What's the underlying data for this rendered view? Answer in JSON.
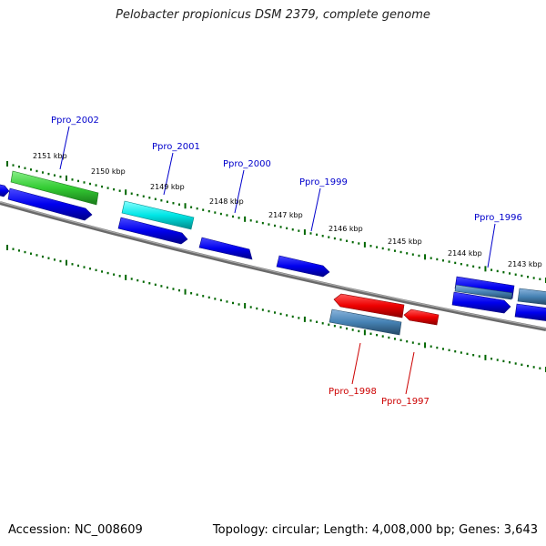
{
  "title": "Pelobacter propionicus DSM 2379, complete genome",
  "footer": {
    "accession": "Accession: NC_008609",
    "topology": "Topology: circular; Length: 4,008,000 bp; Genes: 3,643"
  },
  "scale_labels": [
    "2151 kbp",
    "2150 kbp",
    "2149 kbp",
    "2148 kbp",
    "2147 kbp",
    "2146 kbp",
    "2145 kbp",
    "2144 kbp",
    "2143 kbp"
  ],
  "gene_labels": [
    {
      "text": "Ppro_2002",
      "color": "#0000cc"
    },
    {
      "text": "Ppro_2001",
      "color": "#0000cc"
    },
    {
      "text": "Ppro_2000",
      "color": "#0000cc"
    },
    {
      "text": "Ppro_1999",
      "color": "#0000cc"
    },
    {
      "text": "Ppro_1996",
      "color": "#0000cc"
    },
    {
      "text": "Ppro_1998",
      "color": "#cc0000"
    },
    {
      "text": "Ppro_1997",
      "color": "#cc0000"
    }
  ],
  "colors": {
    "green": "#33cc33",
    "cyan": "#00e6e6",
    "blue": "#0000ee",
    "steel": "#4682b4",
    "red": "#ee0000",
    "backbone": "#808080",
    "ticks": "#006600"
  }
}
